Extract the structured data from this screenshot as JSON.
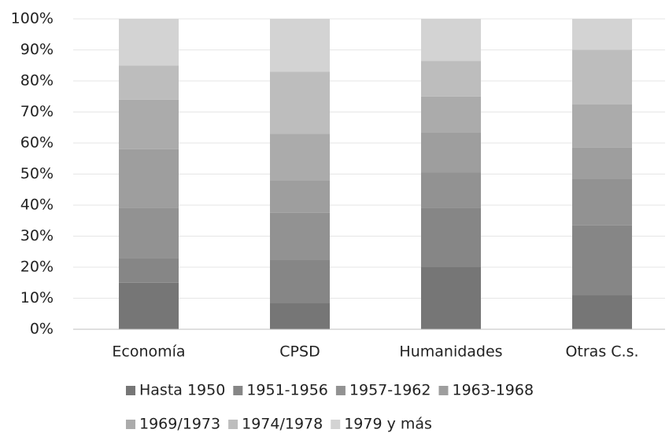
{
  "chart_data": {
    "type": "stacked_bar",
    "categories": [
      "Economía",
      "CPSD",
      "Humanidades",
      "Otras C.s."
    ],
    "series": [
      {
        "name": "Hasta 1950",
        "color": "#767676",
        "values": [
          15,
          8.5,
          20,
          11
        ]
      },
      {
        "name": "1951-1956",
        "color": "#868686",
        "values": [
          8,
          14,
          19,
          22.5
        ]
      },
      {
        "name": "1957-1962",
        "color": "#929292",
        "values": [
          16,
          15,
          11.5,
          15
        ]
      },
      {
        "name": "1963-1968",
        "color": "#9e9e9e",
        "values": [
          19,
          10.5,
          13,
          10
        ]
      },
      {
        "name": "1969/1973",
        "color": "#ababab",
        "values": [
          16,
          15,
          11.5,
          14
        ]
      },
      {
        "name": "1974/1978",
        "color": "#bdbdbd",
        "values": [
          11,
          20,
          11.5,
          17.5
        ]
      },
      {
        "name": "1979 y más",
        "color": "#d3d3d3",
        "values": [
          15,
          17,
          13.5,
          10
        ]
      }
    ],
    "ylim": [
      0,
      100
    ],
    "yticks": [
      {
        "value": 0,
        "label": "0%"
      },
      {
        "value": 10,
        "label": "10%"
      },
      {
        "value": 20,
        "label": "20%"
      },
      {
        "value": 30,
        "label": "30%"
      },
      {
        "value": 40,
        "label": "40%"
      },
      {
        "value": 50,
        "label": "50%"
      },
      {
        "value": 60,
        "label": "60%"
      },
      {
        "value": 70,
        "label": "70%"
      },
      {
        "value": 80,
        "label": "80%"
      },
      {
        "value": 90,
        "label": "90%"
      },
      {
        "value": 100,
        "label": "100%"
      }
    ],
    "grid": true
  }
}
